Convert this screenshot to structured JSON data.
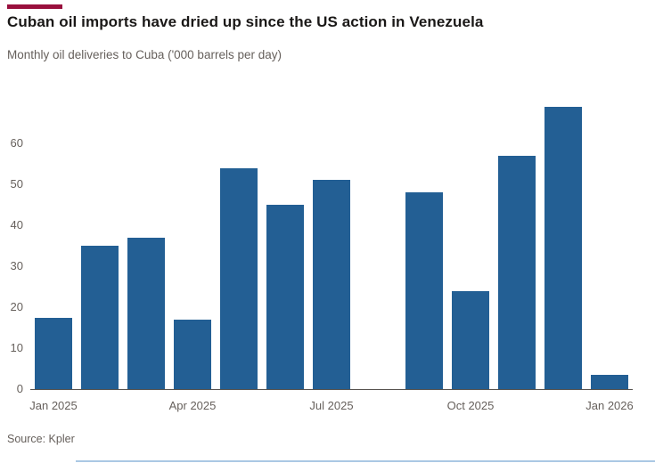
{
  "header": {
    "title": "Cuban oil imports have dried up since the US action in Venezuela",
    "subtitle": "Monthly oil deliveries to Cuba ('000 barrels per day)"
  },
  "footer": {
    "source": "Source: Kpler"
  },
  "colors": {
    "bar": "#235F94",
    "accent_rule": "#990f3d",
    "axis_text": "#66605C",
    "baseline": "#57534F",
    "bottom_divider": "#AAC8E4"
  },
  "chart_data": {
    "type": "bar",
    "title": "Cuban oil imports have dried up since the US action in Venezuela",
    "subtitle": "Monthly oil deliveries to Cuba ('000 barrels per day)",
    "source": "Source: Kpler",
    "categories": [
      "Jan 2025",
      "Feb 2025",
      "Mar 2025",
      "Apr 2025",
      "May 2025",
      "Jun 2025",
      "Jul 2025",
      "Aug 2025",
      "Sep 2025",
      "Oct 2025",
      "Nov 2025",
      "Dec 2025",
      "Jan 2026"
    ],
    "values": [
      17.5,
      35,
      37,
      17,
      54,
      45,
      51,
      0,
      48,
      24,
      57,
      69,
      3.5
    ],
    "xlabel": "",
    "ylabel": "",
    "ylim": [
      0,
      70
    ],
    "yticks": [
      0,
      10,
      20,
      30,
      40,
      50,
      60
    ],
    "x_tick_labels": [
      {
        "label": "Jan 2025",
        "slot": 0
      },
      {
        "label": "Apr 2025",
        "slot": 3
      },
      {
        "label": "Jul 2025",
        "slot": 6
      },
      {
        "label": "Oct 2025",
        "slot": 9
      },
      {
        "label": "Jan 2026",
        "slot": 12
      }
    ],
    "grid": false,
    "legend": false,
    "bar_color": "#235F94"
  }
}
